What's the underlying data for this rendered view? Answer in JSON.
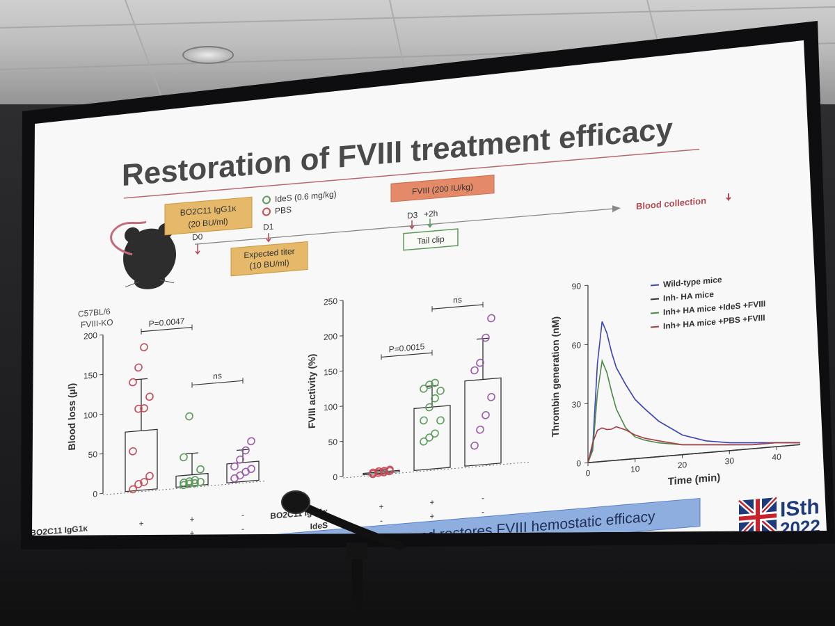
{
  "slide": {
    "title": "Restoration of FVIII treatment efficacy",
    "caption": "IdeS corrects the bleeding tendency and restores FVIII hemostatic efficacy",
    "logo": {
      "text": "ISth",
      "year": "2022"
    }
  },
  "protocol": {
    "mouse_strain": "C57BL/6",
    "mouse_model": "FVIII-KO",
    "antibody_box_line1": "BO2C11 IgG1κ",
    "antibody_box_line2": "(20 BU/ml)",
    "legend_ides": "IdeS (0.6 mg/kg)",
    "legend_pbs": "PBS",
    "fviii_box": "FVIII (200 IU/kg)",
    "d0": "D0",
    "d1": "D1",
    "d3": "D3",
    "plus2h": "+2h",
    "expected_line1": "Expected titer",
    "expected_line2": "(10 BU/ml)",
    "tail_clip": "Tail clip",
    "blood_collection": "Blood collection"
  },
  "chart_data": [
    {
      "type": "bar",
      "ylabel": "Blood loss (µl)",
      "ylim": [
        0,
        200
      ],
      "yticks": [
        0,
        50,
        100,
        150,
        200
      ],
      "categories": [
        "BO2C11 + / IdeS -",
        "BO2C11 + / IdeS +",
        "BO2C11 - / IdeS -"
      ],
      "row_labels": [
        "BO2C11 IgG1κ",
        "IdeS"
      ],
      "row_values": [
        [
          "+",
          "+",
          "-"
        ],
        [
          "-",
          "+",
          "-"
        ]
      ],
      "means": [
        75,
        14,
        24
      ],
      "sd": [
        65,
        27,
        16
      ],
      "points": [
        [
          2,
          8,
          10,
          17,
          50,
          103,
          103,
          117,
          137,
          155,
          180
        ],
        [
          2,
          3,
          3,
          4,
          5,
          6,
          7,
          20,
          37,
          88
        ],
        [
          5,
          8,
          12,
          15,
          20,
          28,
          39,
          50
        ]
      ],
      "point_colors": [
        "#c64a57",
        "#5b9a5b",
        "#9b5aa8"
      ],
      "annotations": [
        {
          "text": "P=0.0047",
          "between": [
            0,
            1
          ]
        },
        {
          "text": "ns",
          "between": [
            1,
            2
          ]
        }
      ]
    },
    {
      "type": "bar",
      "ylabel": "FVIII activity (%)",
      "ylim": [
        0,
        250
      ],
      "yticks": [
        0,
        50,
        100,
        150,
        200,
        250
      ],
      "categories": [
        "BO2C11 + / IdeS -",
        "BO2C11 + / IdeS +",
        "BO2C11 - / IdeS -"
      ],
      "row_labels": [
        "BO2C11 IgG1κ",
        "IdeS"
      ],
      "row_values": [
        [
          "+",
          "+",
          "-"
        ],
        [
          "-",
          "+",
          "-"
        ]
      ],
      "means": [
        2,
        88,
        121
      ],
      "sd": [
        2,
        30,
        58
      ],
      "points": [
        [
          0,
          1,
          1,
          2,
          2,
          3,
          3,
          4
        ],
        [
          40,
          45,
          50,
          68,
          70,
          88,
          100,
          110,
          115,
          120,
          122
        ],
        [
          28,
          50,
          70,
          95,
          135,
          145,
          180,
          207
        ]
      ],
      "point_colors": [
        "#c64a57",
        "#5b9a5b",
        "#9b5aa8"
      ],
      "annotations": [
        {
          "text": "P=0.0015",
          "between": [
            0,
            1
          ]
        },
        {
          "text": "ns",
          "between": [
            1,
            2
          ]
        }
      ]
    },
    {
      "type": "line",
      "xlabel": "Time (min)",
      "ylabel": "Thrombin generation (nM)",
      "xlim": [
        0,
        45
      ],
      "ylim": [
        0,
        90
      ],
      "xticks": [
        0,
        10,
        20,
        30,
        40
      ],
      "yticks": [
        0,
        30,
        60,
        90
      ],
      "legend_position": "top-right",
      "series": [
        {
          "name": "Wild-type mice",
          "color": "#3b44b5",
          "x": [
            0,
            1,
            2,
            3,
            4,
            5,
            6,
            8,
            10,
            12,
            15,
            20,
            25,
            30,
            35,
            40,
            45
          ],
          "y": [
            0,
            8,
            50,
            71,
            65,
            55,
            47,
            38,
            30,
            25,
            18,
            10,
            6,
            4,
            3,
            2,
            1
          ]
        },
        {
          "name": "Inh- HA mice",
          "color": "#333333",
          "x": [
            0,
            1,
            2,
            3,
            5,
            8,
            10,
            15,
            20,
            30,
            40,
            45
          ],
          "y": [
            0,
            0,
            0,
            0,
            0,
            0,
            0,
            0,
            0,
            0,
            0,
            0
          ]
        },
        {
          "name": "Inh+ HA mice +IdeS +FVIII",
          "color": "#4d8a48",
          "x": [
            0,
            1,
            2,
            3,
            4,
            5,
            6,
            8,
            10,
            12,
            15,
            20,
            25,
            30,
            35,
            40,
            45
          ],
          "y": [
            0,
            6,
            35,
            51,
            45,
            35,
            26,
            16,
            11,
            9,
            7,
            5,
            4,
            3,
            2,
            2,
            1
          ]
        },
        {
          "name": "Inh+ HA mice +PBS +FVIII",
          "color": "#a73b45",
          "x": [
            0,
            1,
            2,
            3,
            4,
            5,
            6,
            8,
            10,
            12,
            15,
            20,
            25,
            30,
            35,
            40,
            45
          ],
          "y": [
            0,
            10,
            16,
            17,
            16,
            16,
            17,
            15,
            12,
            10,
            8,
            5,
            4,
            3,
            2,
            2,
            1
          ]
        }
      ]
    }
  ]
}
